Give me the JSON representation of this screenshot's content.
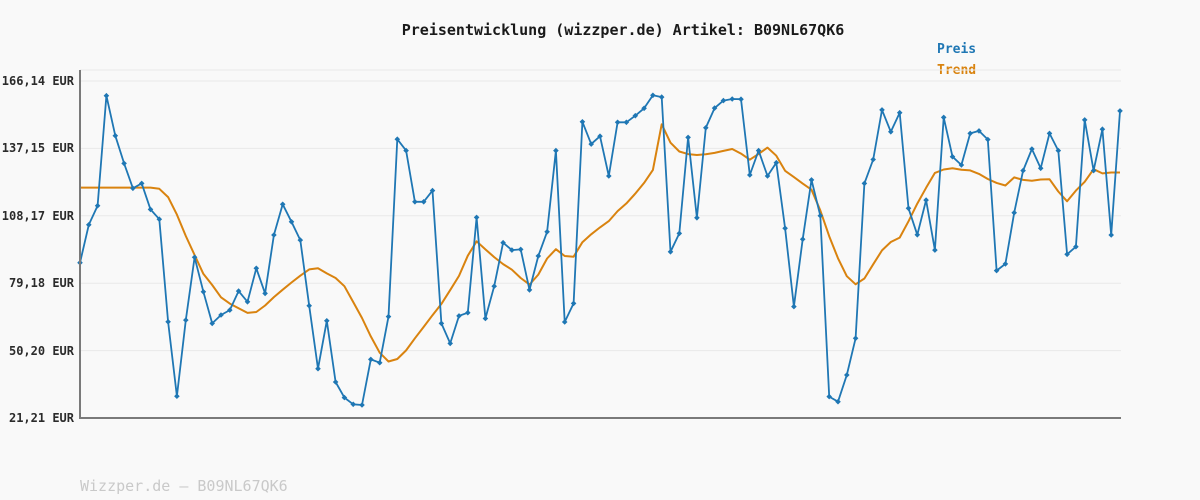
{
  "title": "Preisentwicklung (wizzper.de) Artikel: B09NL67QK6",
  "footer": "Wizzper.de — B09NL67QK6",
  "legend": {
    "preis": "Preis",
    "trend": "Trend"
  },
  "colors": {
    "preis": "#1f77b4",
    "trend": "#d9830f",
    "grid": "#e9e9e9",
    "axis": "#7a7a7a",
    "background": "#f9f9f9",
    "title": "#1a1a1a",
    "tick_label": "#2b2b2b",
    "footer": "#c9c9c9"
  },
  "y_axis": {
    "ticks": [
      {
        "label": "166,14 EUR",
        "value": 166.14
      },
      {
        "label": "137,15 EUR",
        "value": 137.15
      },
      {
        "label": "108,17 EUR",
        "value": 108.17
      },
      {
        "label": "79,18 EUR",
        "value": 79.18
      },
      {
        "label": "50,20 EUR",
        "value": 50.2
      },
      {
        "label": "21,21 EUR",
        "value": 21.21
      }
    ]
  },
  "chart_data": {
    "type": "line",
    "title": "Preisentwicklung (wizzper.de) Artikel: B09NL67QK6",
    "ylabel": "EUR",
    "ylim": [
      21.21,
      170.9
    ],
    "yticks": [
      166.14,
      137.15,
      108.17,
      79.18,
      50.2,
      21.21
    ],
    "xticks": [],
    "x_axis_labels_visible": false,
    "grid": true,
    "legend_position": "top-right",
    "series": [
      {
        "name": "Preis",
        "color": "#1f77b4",
        "marker": "diamond",
        "values": [
          88.0,
          104.3,
          112.5,
          159.8,
          142.6,
          130.7,
          120.0,
          122.1,
          110.9,
          106.7,
          62.6,
          30.6,
          63.3,
          90.3,
          75.5,
          61.9,
          65.5,
          67.6,
          75.8,
          71.2,
          85.6,
          74.8,
          99.9,
          113.1,
          105.6,
          97.7,
          69.5,
          42.4,
          63.0,
          36.7,
          30.0,
          27.1,
          26.8,
          46.4,
          45.0,
          64.8,
          141.1,
          136.2,
          114.2,
          114.2,
          119.0,
          61.9,
          53.3,
          65.1,
          66.5,
          107.5,
          64.0,
          77.9,
          96.6,
          93.4,
          93.7,
          76.3,
          90.9,
          101.3,
          136.2,
          62.5,
          70.5,
          148.6,
          139.0,
          142.4,
          125.3,
          148.4,
          148.4,
          151.2,
          154.4,
          160.0,
          159.2,
          92.7,
          100.6,
          141.9,
          107.3,
          146.0,
          154.5,
          157.7,
          158.4,
          158.3,
          125.7,
          136.2,
          125.3,
          131.0,
          102.8,
          69.1,
          98.1,
          123.6,
          108.2,
          30.4,
          28.2,
          39.7,
          55.5,
          122.1,
          132.4,
          153.7,
          144.3,
          152.5,
          111.4,
          100.0,
          114.9,
          93.4,
          150.5,
          133.6,
          130.0,
          143.6,
          144.7,
          141.0,
          84.6,
          87.5,
          109.5,
          127.6,
          136.9,
          128.6,
          143.6,
          136.2,
          91.6,
          94.9,
          149.4,
          127.6,
          145.4,
          99.9,
          153.3
        ]
      },
      {
        "name": "Trend",
        "color": "#d9830f",
        "marker": "none",
        "values": [
          120.3,
          120.3,
          120.3,
          120.3,
          120.3,
          120.3,
          120.3,
          120.3,
          120.3,
          119.8,
          116.2,
          108.7,
          99.5,
          91.3,
          83.2,
          78.4,
          73.1,
          70.4,
          68.4,
          66.4,
          66.8,
          69.6,
          73.2,
          76.4,
          79.5,
          82.4,
          85.1,
          85.6,
          83.4,
          81.4,
          77.9,
          71.1,
          64.2,
          56.3,
          49.3,
          45.5,
          46.6,
          50.3,
          55.5,
          60.4,
          65.4,
          70.3,
          76.2,
          82.3,
          91.0,
          97.2,
          93.7,
          90.4,
          87.4,
          85.0,
          81.4,
          78.6,
          82.9,
          89.8,
          93.8,
          90.9,
          90.6,
          96.8,
          100.2,
          103.2,
          105.9,
          110.2,
          113.5,
          117.7,
          122.3,
          127.9,
          147.5,
          139.6,
          135.8,
          134.7,
          134.3,
          134.6,
          135.2,
          136.1,
          136.9,
          134.9,
          132.3,
          134.8,
          137.5,
          134.0,
          127.5,
          124.8,
          122.0,
          119.4,
          110.5,
          99.4,
          89.9,
          82.2,
          78.7,
          81.2,
          87.3,
          93.3,
          96.9,
          98.8,
          105.8,
          113.4,
          120.2,
          126.6,
          128.1,
          128.6,
          128.0,
          127.7,
          126.2,
          124.0,
          122.3,
          121.2,
          124.7,
          123.6,
          123.2,
          123.8,
          123.9,
          118.6,
          114.4,
          119.0,
          122.8,
          128.2,
          126.4,
          126.8,
          126.8
        ]
      }
    ]
  }
}
